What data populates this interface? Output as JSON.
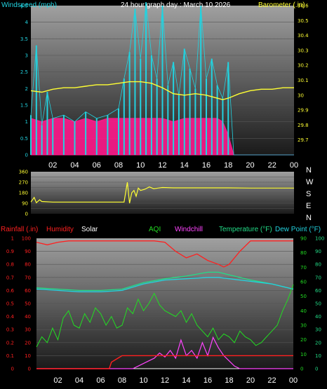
{
  "colors": {
    "wind": "#22d3e0",
    "gust": "#ff1a8c",
    "barometer": "#ffff33",
    "direction": "#ffff33",
    "rainfall": "#ff2020",
    "humidity": "#ff2020",
    "solar": "#ffffff",
    "aqi": "#22dd22",
    "windchill": "#ff44ff",
    "temperature": "#22dd88",
    "dewpoint": "#22d3e0",
    "axis_white": "#ffffff"
  },
  "chart_data": [
    {
      "type": "line",
      "id": "wind-barometer",
      "title": "24 hour graph day : March 10 2026",
      "ylabel_left": "Windspeed (mph)",
      "ylabel_right": "Barometer (.in)",
      "x_ticks": [
        "02",
        "04",
        "06",
        "08",
        "10",
        "12",
        "14",
        "16",
        "18",
        "20",
        "22",
        "00"
      ],
      "ylim_left": [
        0,
        4.5
      ],
      "yticks_left": [
        "0",
        "0.5",
        "1",
        "1.5",
        "2",
        "2.5",
        "3",
        "3.5",
        "4",
        "4.5"
      ],
      "ylim_right": [
        29.6,
        30.6
      ],
      "yticks_right": [
        "29.7",
        "29.8",
        "29.9",
        "30",
        "30.1",
        "30.2",
        "30.3",
        "30.4",
        "30.5",
        "30.6"
      ],
      "xlim": [
        0,
        24
      ],
      "series": [
        {
          "name": "Windspeed (mph)",
          "axis": "left",
          "x": [
            0,
            0.5,
            1,
            1.5,
            2,
            3,
            4,
            5,
            6,
            7,
            8,
            8.5,
            9,
            9.5,
            10,
            10.5,
            11,
            11.5,
            12,
            12.5,
            13,
            13.5,
            14,
            14.5,
            15,
            15.5,
            16,
            16.5,
            17,
            17.5,
            18,
            18.5,
            19,
            20,
            21,
            22,
            23,
            24
          ],
          "values": [
            1.2,
            3.3,
            0.9,
            1.9,
            1.1,
            1.2,
            1.0,
            1.3,
            1.1,
            1.2,
            1.4,
            2.3,
            3.1,
            4.4,
            2.9,
            4.6,
            3.0,
            2.3,
            4.5,
            2.1,
            2.8,
            1.8,
            3.2,
            2.6,
            2.0,
            4.5,
            2.3,
            2.9,
            2.1,
            1.7,
            2.8,
            0.0,
            0.0,
            0.0,
            0.0,
            0.0,
            0.0,
            0.0
          ]
        },
        {
          "name": "Wind gust",
          "axis": "left",
          "x": [
            0,
            1,
            2,
            3,
            4,
            5,
            6,
            7,
            8,
            9,
            10,
            11,
            12,
            13,
            14,
            15,
            16,
            17,
            17.5,
            18,
            18.5,
            19,
            20,
            24
          ],
          "values": [
            1.1,
            1.0,
            1.1,
            1.1,
            1.0,
            1.1,
            1.0,
            1.1,
            1.1,
            1.1,
            1.1,
            1.1,
            1.1,
            1.0,
            1.1,
            1.1,
            1.1,
            1.1,
            1.0,
            0.6,
            0.0,
            0.0,
            0.0,
            0.0
          ]
        },
        {
          "name": "Barometer (.in)",
          "axis": "right",
          "x": [
            0,
            1,
            2,
            3,
            4,
            5,
            6,
            7,
            8,
            9,
            10,
            11,
            12,
            13,
            14,
            15,
            16,
            17,
            17.5,
            18,
            19,
            20,
            21,
            22,
            23,
            24
          ],
          "values": [
            30.03,
            30.02,
            30.04,
            30.05,
            30.05,
            30.06,
            30.07,
            30.07,
            30.08,
            30.09,
            30.09,
            30.08,
            30.05,
            30.01,
            30.0,
            30.01,
            30.0,
            29.98,
            29.97,
            29.98,
            30.01,
            30.03,
            30.04,
            30.04,
            30.05,
            30.05
          ]
        }
      ]
    },
    {
      "type": "line",
      "id": "wind-direction",
      "ylim": [
        0,
        360
      ],
      "yticks": [
        "0",
        "90",
        "180",
        "270",
        "360"
      ],
      "compass": [
        "N",
        "W",
        "S",
        "E",
        "N"
      ],
      "xlim": [
        0,
        24
      ],
      "series": [
        {
          "name": "Wind direction",
          "x": [
            0,
            0.3,
            0.5,
            0.8,
            1,
            2,
            4,
            6,
            8,
            8.5,
            8.8,
            9.0,
            9.2,
            9.4,
            9.6,
            9.8,
            10,
            10.4,
            10.8,
            11.2,
            11.6,
            12,
            13,
            14,
            16,
            18,
            20,
            22,
            24
          ],
          "values": [
            100,
            140,
            95,
            120,
            105,
            100,
            100,
            100,
            100,
            100,
            270,
            90,
            180,
            200,
            150,
            220,
            200,
            210,
            230,
            215,
            220,
            225,
            222,
            222,
            222,
            222,
            220,
            220,
            220
          ]
        }
      ]
    },
    {
      "type": "line",
      "id": "weather",
      "labels": {
        "rainfall": "Rainfall (.in)",
        "humidity": "Humidity",
        "solar": "Solar",
        "aqi": "AQI",
        "windchill": "Windchill",
        "temperature": "Temperature (°F)",
        "dewpoint": "Dew Point (°F)"
      },
      "x_ticks": [
        "02",
        "04",
        "06",
        "08",
        "10",
        "12",
        "14",
        "16",
        "18",
        "20",
        "22",
        "00"
      ],
      "xlim": [
        0,
        24
      ],
      "yticks_rain": [
        "0",
        "0.1",
        "0.2",
        "0.3",
        "0.4",
        "0.5",
        "0.6",
        "0.7",
        "0.8",
        "0.9",
        "1"
      ],
      "yticks_humidity": [
        "0",
        "10",
        "20",
        "30",
        "40",
        "50",
        "60",
        "70",
        "80",
        "90",
        "100"
      ],
      "yticks_aqi": [
        "0",
        "10",
        "20",
        "30",
        "40",
        "50",
        "60",
        "70",
        "80",
        "90"
      ],
      "yticks_temp": [
        "0",
        "10",
        "20",
        "30",
        "40",
        "50",
        "60",
        "70",
        "80",
        "90",
        "100"
      ],
      "series": [
        {
          "name": "Humidity",
          "x": [
            0,
            1,
            2,
            3,
            4,
            5,
            6,
            7,
            8,
            9,
            10,
            11,
            12,
            13,
            14,
            15,
            16,
            17,
            17.5,
            18,
            19,
            20,
            21,
            22,
            23,
            24
          ],
          "values": [
            97,
            95,
            97,
            98,
            98,
            98,
            98,
            98,
            98,
            98,
            98,
            98,
            97,
            90,
            85,
            88,
            83,
            80,
            78,
            80,
            90,
            98,
            98,
            98,
            98,
            98
          ]
        },
        {
          "name": "Temperature (°F)",
          "x": [
            0,
            2,
            4,
            6,
            8,
            10,
            12,
            14,
            16,
            17,
            18,
            20,
            22,
            24
          ],
          "values": [
            62,
            61,
            60,
            60,
            61,
            66,
            69,
            71,
            74,
            74,
            72,
            68,
            65,
            61
          ]
        },
        {
          "name": "Dew Point (°F)",
          "x": [
            0,
            2,
            4,
            6,
            8,
            10,
            12,
            14,
            16,
            17,
            18,
            20,
            22,
            24
          ],
          "values": [
            61,
            60,
            59,
            59,
            60,
            65,
            68,
            69,
            70,
            70,
            69,
            67,
            65,
            61
          ]
        },
        {
          "name": "AQI",
          "x": [
            0,
            0.5,
            1,
            1.5,
            2,
            2.5,
            3,
            3.5,
            4,
            4.5,
            5,
            5.5,
            6,
            6.5,
            7,
            7.5,
            8,
            8.5,
            9,
            9.5,
            10,
            10.5,
            11,
            11.5,
            12,
            12.5,
            13,
            13.5,
            14,
            14.5,
            15,
            15.5,
            16,
            16.5,
            17,
            17.5,
            18,
            18.5,
            19,
            19.5,
            20,
            20.5,
            21,
            21.5,
            22,
            22.5,
            23,
            23.5,
            24
          ],
          "values": [
            15,
            22,
            18,
            28,
            20,
            35,
            40,
            30,
            28,
            38,
            32,
            42,
            38,
            30,
            36,
            28,
            30,
            42,
            38,
            48,
            40,
            45,
            52,
            44,
            40,
            38,
            36,
            40,
            32,
            38,
            30,
            26,
            22,
            28,
            20,
            24,
            22,
            18,
            26,
            22,
            20,
            16,
            18,
            22,
            26,
            30,
            40,
            48,
            58
          ]
        },
        {
          "name": "Solar",
          "x": [
            0,
            7,
            8,
            10,
            12,
            14,
            16,
            17,
            17.5,
            18,
            19,
            24
          ],
          "values": [
            0,
            0,
            0,
            0,
            0,
            0,
            0,
            0,
            0,
            0,
            0,
            0
          ]
        },
        {
          "name": "Windchill",
          "x": [
            0,
            9,
            9.5,
            10,
            10.5,
            11,
            11.5,
            12,
            12.5,
            13,
            13.5,
            14,
            14.5,
            15,
            15.5,
            16,
            16.5,
            17,
            17.5,
            18,
            18.5,
            19,
            24
          ],
          "values": [
            0,
            0,
            2,
            4,
            6,
            8,
            12,
            9,
            14,
            8,
            22,
            10,
            14,
            8,
            20,
            10,
            24,
            16,
            10,
            6,
            2,
            0,
            0
          ]
        },
        {
          "name": "Rainfall (.in)",
          "x": [
            0,
            6.8,
            7,
            7.6,
            8,
            24
          ],
          "values": [
            0,
            0,
            0.05,
            0.08,
            0.1,
            0.1
          ]
        }
      ]
    }
  ]
}
